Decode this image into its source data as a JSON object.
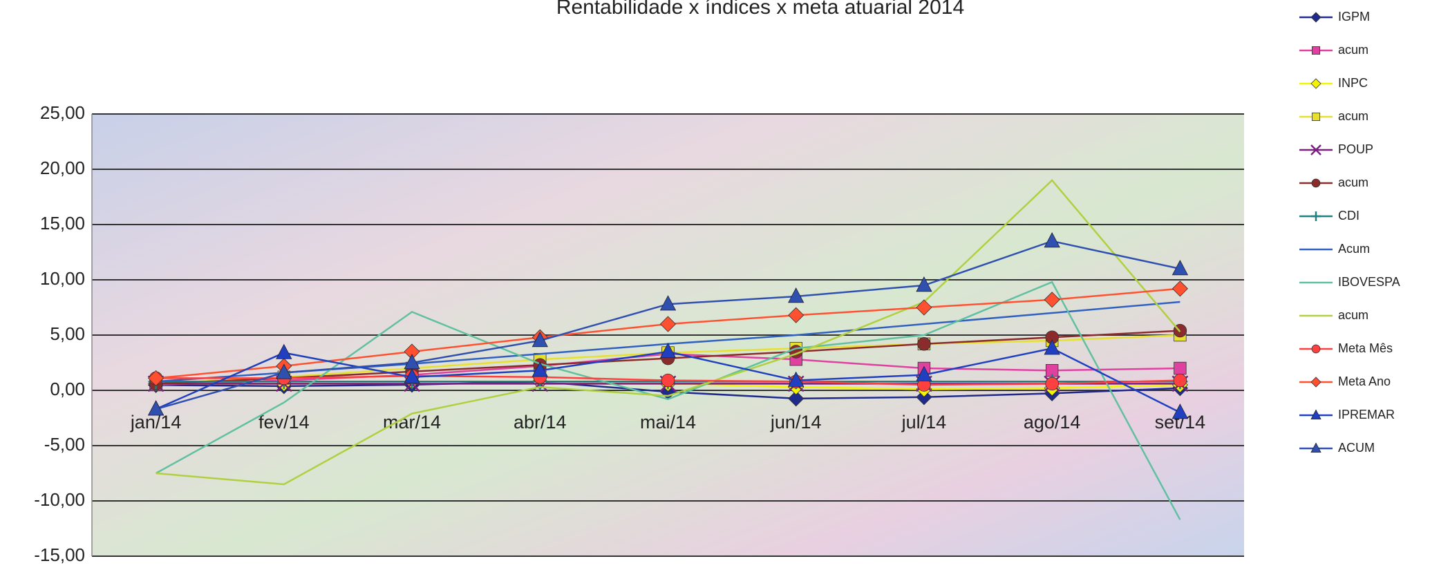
{
  "chart_data": {
    "type": "line",
    "title": "Rentabilidade x índices x meta atuarial 2014",
    "categories": [
      "jan/14",
      "fev/14",
      "mar/14",
      "abr/14",
      "mai/14",
      "jun/14",
      "jul/14",
      "ago/14",
      "set/14"
    ],
    "ylim": [
      -15,
      25
    ],
    "yticks": [
      {
        "value": -15,
        "label": "-15,00"
      },
      {
        "value": -10,
        "label": "-10,00"
      },
      {
        "value": -5,
        "label": "-5,00"
      },
      {
        "value": 0,
        "label": "0,00"
      },
      {
        "value": 5,
        "label": "5,00"
      },
      {
        "value": 10,
        "label": "10,00"
      },
      {
        "value": 15,
        "label": "15,00"
      },
      {
        "value": 20,
        "label": "20,00"
      },
      {
        "value": 25,
        "label": "25,00"
      }
    ],
    "grid": true,
    "legend": "right",
    "series": [
      {
        "name": "IGPM",
        "color": "#1f2a8a",
        "marker": "diamond",
        "values": [
          0.48,
          0.38,
          0.51,
          0.78,
          -0.13,
          -0.74,
          -0.61,
          -0.27,
          0.2
        ]
      },
      {
        "name": "acum",
        "color": "#e040a0",
        "marker": "square",
        "values": [
          0.5,
          0.9,
          1.4,
          2.2,
          3.3,
          2.8,
          2.0,
          1.8,
          2.0
        ]
      },
      {
        "name": "INPC",
        "color": "#f4f400",
        "marker": "diamond",
        "values": [
          0.6,
          0.6,
          0.8,
          0.8,
          0.6,
          0.3,
          0.1,
          0.2,
          0.5
        ]
      },
      {
        "name": "acum",
        "color": "#e8e030",
        "marker": "square",
        "values": [
          0.6,
          1.2,
          2.0,
          2.8,
          3.4,
          3.8,
          4.2,
          4.5,
          5.0
        ]
      },
      {
        "name": "POUP",
        "color": "#7a2080",
        "marker": "x",
        "values": [
          0.6,
          0.6,
          0.6,
          0.6,
          0.6,
          0.6,
          0.6,
          0.6,
          0.6
        ]
      },
      {
        "name": "acum",
        "color": "#8b2c2c",
        "marker": "circle",
        "values": [
          0.6,
          1.1,
          1.7,
          2.3,
          2.9,
          3.5,
          4.2,
          4.8,
          5.4
        ]
      },
      {
        "name": "CDI",
        "color": "#208080",
        "marker": "plus",
        "values": [
          0.8,
          0.8,
          0.8,
          0.8,
          0.8,
          0.8,
          0.8,
          0.8,
          0.8
        ]
      },
      {
        "name": "Acum",
        "color": "#3060c0",
        "marker": "none",
        "values": [
          0.8,
          1.6,
          2.4,
          3.3,
          4.2,
          5.0,
          6.0,
          7.0,
          8.0
        ]
      },
      {
        "name": "IBOVESPA",
        "color": "#60c0a0",
        "marker": "none",
        "values": [
          -7.5,
          -1.1,
          7.1,
          2.4,
          -0.8,
          3.8,
          5.0,
          9.8,
          -11.7
        ]
      },
      {
        "name": "acum",
        "color": "#b0d040",
        "marker": "none",
        "values": [
          -7.5,
          -8.5,
          -2.1,
          0.3,
          -0.5,
          3.3,
          8.0,
          19.0,
          5.3
        ]
      },
      {
        "name": "Meta Mês",
        "color": "#ff4040",
        "marker": "circle",
        "values": [
          1.1,
          1.1,
          1.3,
          1.2,
          0.9,
          0.8,
          0.5,
          0.6,
          0.9
        ]
      },
      {
        "name": "Meta Ano",
        "color": "#ff5030",
        "marker": "diamond",
        "values": [
          1.1,
          2.2,
          3.5,
          4.8,
          6.0,
          6.8,
          7.5,
          8.2,
          9.2
        ]
      },
      {
        "name": "IPREMAR",
        "color": "#2040c0",
        "marker": "triangle",
        "values": [
          -1.7,
          3.4,
          1.2,
          1.8,
          3.5,
          0.9,
          1.4,
          3.8,
          -2.0
        ]
      },
      {
        "name": "ACUM",
        "color": "#3050b0",
        "marker": "triangle",
        "values": [
          -1.7,
          1.6,
          2.5,
          4.5,
          7.8,
          8.5,
          9.5,
          13.5,
          11.0
        ]
      }
    ]
  }
}
